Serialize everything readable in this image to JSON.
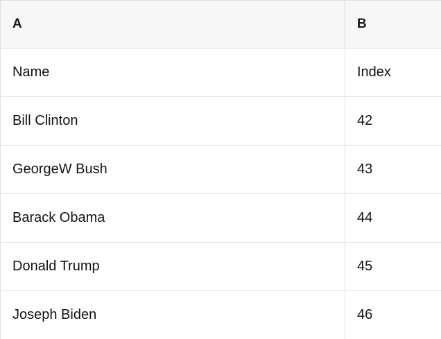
{
  "table": {
    "columns": [
      {
        "label": "A"
      },
      {
        "label": "B"
      }
    ],
    "rows": [
      {
        "a": "Name",
        "b": "Index"
      },
      {
        "a": "Bill Clinton",
        "b": "42"
      },
      {
        "a": "GeorgeW Bush",
        "b": "43"
      },
      {
        "a": "Barack Obama",
        "b": "44"
      },
      {
        "a": "Donald Trump",
        "b": "45"
      },
      {
        "a": "Joseph Biden",
        "b": "46"
      }
    ],
    "colors": {
      "header_bg": "#f7f7f7",
      "border": "#e0e0e0",
      "text": "#131313",
      "row_bg": "#ffffff"
    }
  }
}
